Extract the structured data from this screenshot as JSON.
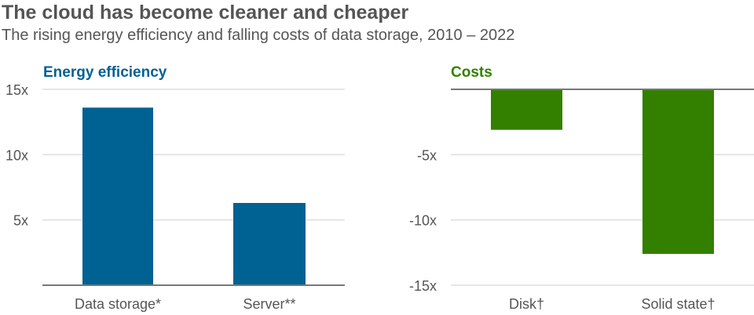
{
  "title": "The cloud has become cleaner and cheaper",
  "subtitle": "The rising energy efficiency and falling costs of data storage, 2010 – 2022",
  "chart_data": [
    {
      "type": "bar",
      "title": "Energy efficiency",
      "categories": [
        "Data storage*",
        "Server**"
      ],
      "values": [
        13.6,
        6.3
      ],
      "ylim": [
        0,
        15
      ],
      "yticks": [
        5,
        10,
        15
      ],
      "ytick_labels": [
        "5x",
        "10x",
        "15x"
      ],
      "color": "#006193",
      "grid": true
    },
    {
      "type": "bar",
      "title": "Costs",
      "categories": [
        "Disk†",
        "Solid state†"
      ],
      "values": [
        -3.1,
        -12.6
      ],
      "ylim": [
        -15,
        0
      ],
      "yticks": [
        -5,
        -10,
        -15
      ],
      "ytick_labels": [
        "-5x",
        "-10x",
        "-15x"
      ],
      "color": "#338000",
      "grid": true
    }
  ]
}
